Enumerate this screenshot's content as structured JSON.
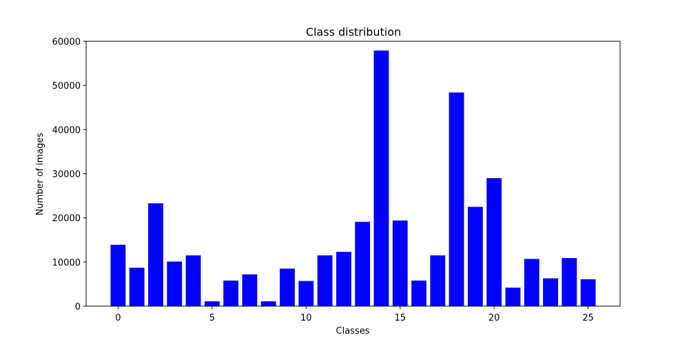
{
  "chart_data": {
    "type": "bar",
    "title": "Class distribution",
    "xlabel": "Classes",
    "ylabel": "Number of images",
    "categories": [
      0,
      1,
      2,
      3,
      4,
      5,
      6,
      7,
      8,
      9,
      10,
      11,
      12,
      13,
      14,
      15,
      16,
      17,
      18,
      19,
      20,
      21,
      22,
      23,
      24,
      25
    ],
    "values": [
      13900,
      8700,
      23300,
      10100,
      11500,
      1100,
      5800,
      7200,
      1100,
      8500,
      5700,
      11500,
      12300,
      19100,
      57900,
      19400,
      5800,
      11500,
      48400,
      22500,
      29000,
      4200,
      10700,
      6300,
      10900,
      6100
    ],
    "xlim": [
      -1.7,
      26.7
    ],
    "ylim": [
      0,
      60000
    ],
    "xticks": [
      0,
      5,
      10,
      15,
      20,
      25
    ],
    "yticks": [
      0,
      10000,
      20000,
      30000,
      40000,
      50000,
      60000
    ],
    "bar_color": "#0000ff",
    "grid": false
  }
}
